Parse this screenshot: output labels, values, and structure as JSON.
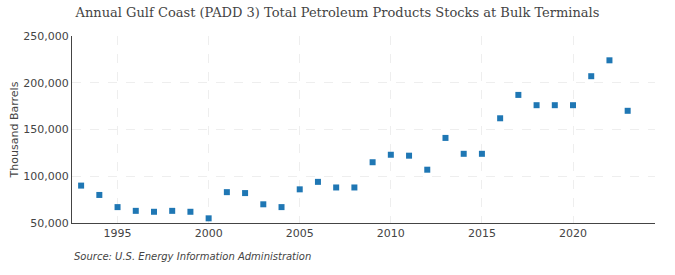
{
  "chart_data": {
    "type": "scatter",
    "title": "Annual Gulf Coast (PADD 3) Total Petroleum Products Stocks at Bulk Terminals",
    "y_label": "Thousand Barrels",
    "annotations": [
      "Source: U.S. Energy Information Administration"
    ],
    "x": [
      1993,
      1994,
      1995,
      1996,
      1997,
      1998,
      1999,
      2000,
      2001,
      2002,
      2003,
      2004,
      2005,
      2006,
      2007,
      2008,
      2009,
      2010,
      2011,
      2012,
      2013,
      2014,
      2015,
      2016,
      2017,
      2018,
      2019,
      2020,
      2021,
      2022,
      2023
    ],
    "values": [
      90000,
      80000,
      67000,
      63000,
      62000,
      63000,
      62000,
      55000,
      83000,
      82000,
      70000,
      67000,
      86000,
      94000,
      88000,
      88000,
      115000,
      123000,
      122000,
      107000,
      141000,
      124000,
      124000,
      162000,
      187000,
      176000,
      176000,
      176000,
      207000,
      224000,
      170000
    ],
    "xlim": [
      1992.5,
      2024.5
    ],
    "ylim": [
      50000,
      250000
    ],
    "xticks": [
      1995,
      2000,
      2005,
      2010,
      2015,
      2020
    ],
    "yticks": [
      {
        "value": 50000,
        "label": "50,000"
      },
      {
        "value": 100000,
        "label": "100,000"
      },
      {
        "value": 150000,
        "label": "150,000"
      },
      {
        "value": 200000,
        "label": "200,000"
      },
      {
        "value": 250000,
        "label": "250,000"
      }
    ],
    "grid": true,
    "marker": "square"
  }
}
